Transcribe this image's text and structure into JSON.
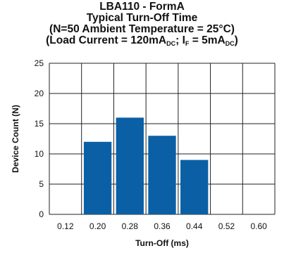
{
  "chart_data": {
    "type": "bar",
    "title": {
      "line1": "LBA110 - FormA",
      "line2": "Typical Turn-Off Time",
      "line3": "(N=50 Ambient Temperature = 25°C)",
      "line4_prefix": "(Load Current = 120mA",
      "line4_sub1": "DC",
      "line4_mid": "; I",
      "line4_sub2": "F",
      "line4_mid2": " = 5mA",
      "line4_sub3": "DC",
      "line4_suffix": ")"
    },
    "xlabel": "Turn-Off (ms)",
    "ylabel": "Device Count (N)",
    "categories": [
      "0.12",
      "0.20",
      "0.28",
      "0.36",
      "0.44",
      "0.52",
      "0.60"
    ],
    "values": [
      0,
      12,
      16,
      13,
      9,
      0,
      0
    ],
    "ylim": [
      0,
      25
    ],
    "yticks": [
      "0",
      "5",
      "10",
      "15",
      "20",
      "25"
    ],
    "grid": true,
    "bar_color": "#0b5fa5"
  }
}
